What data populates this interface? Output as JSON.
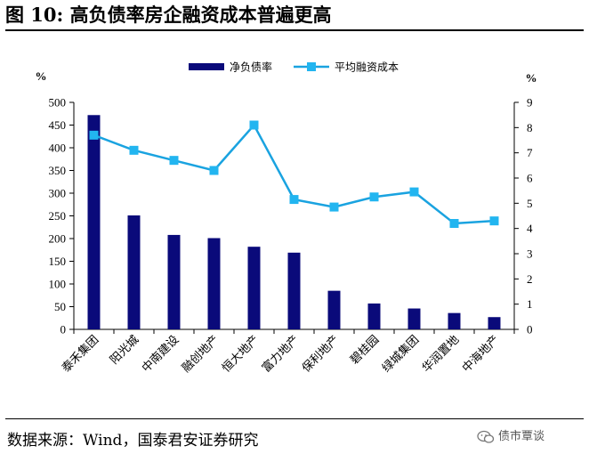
{
  "header": {
    "title": "图 10:  高负债率房企融资成本普遍更高"
  },
  "footer": {
    "source": "数据来源：Wind，国泰君安证券研究",
    "watermark": "债市覃谈"
  },
  "icons": {
    "watermark_icon": "wechat-icon"
  },
  "colors": {
    "bar": "#0a0a7a",
    "line": "#1aa3e0",
    "marker": "#22b5f0"
  },
  "chart_data": {
    "type": "bar+line",
    "categories": [
      "泰禾集团",
      "阳光城",
      "中南建设",
      "融创地产",
      "恒大地产",
      "富力地产",
      "保利地产",
      "碧桂园",
      "绿城集团",
      "华润置地",
      "中海地产"
    ],
    "series": [
      {
        "name": "净负债率",
        "type": "bar",
        "axis": "left",
        "values": [
          472,
          251,
          208,
          201,
          182,
          169,
          85,
          57,
          46,
          36,
          27
        ]
      },
      {
        "name": "平均融资成本",
        "type": "line",
        "axis": "right",
        "values": [
          7.7,
          7.1,
          6.7,
          6.3,
          8.1,
          5.15,
          4.85,
          5.25,
          5.45,
          4.2,
          4.3
        ]
      }
    ],
    "left_axis": {
      "unit": "%",
      "ylim": [
        0,
        500
      ],
      "ticks": [
        "0",
        "50",
        "100",
        "150",
        "200",
        "250",
        "300",
        "350",
        "400",
        "450",
        "500"
      ]
    },
    "right_axis": {
      "unit": "%",
      "ylim": [
        0,
        9
      ],
      "ticks": [
        "0",
        "1",
        "2",
        "3",
        "4",
        "5",
        "6",
        "7",
        "8",
        "9"
      ]
    },
    "legend": {
      "placement": "top-center",
      "items": [
        "净负债率",
        "平均融资成本"
      ]
    },
    "grid": false
  }
}
